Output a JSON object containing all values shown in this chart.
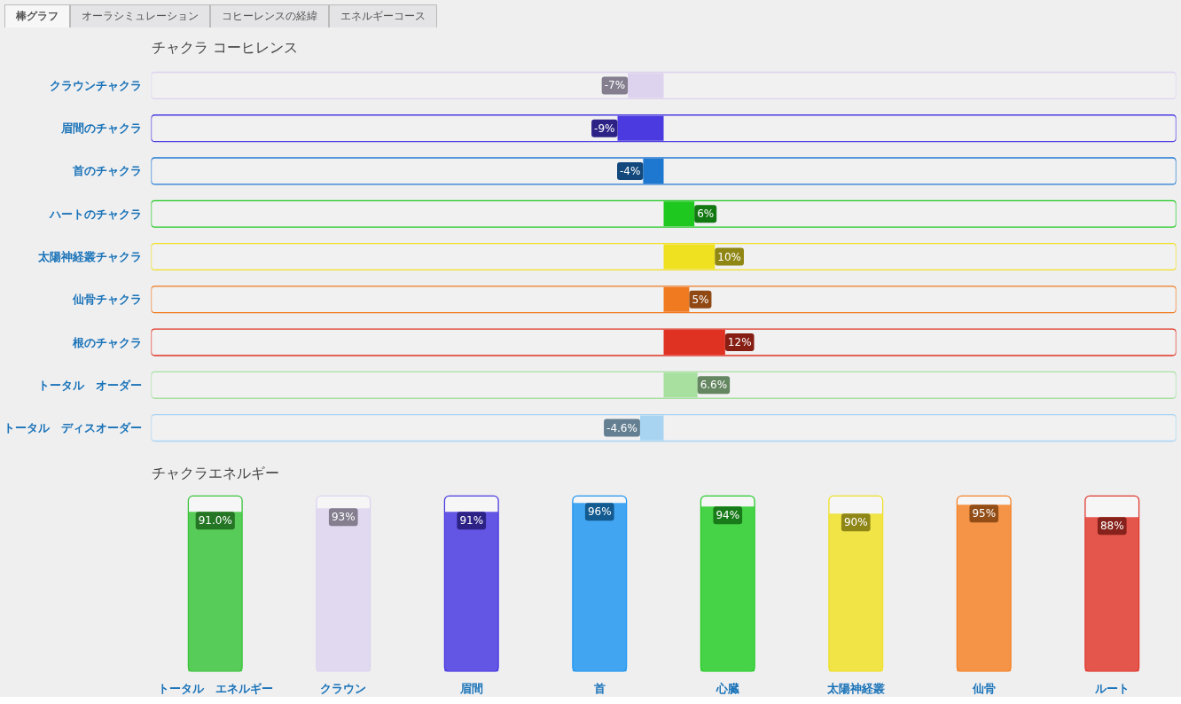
{
  "chart_data": [
    {
      "type": "bar",
      "orientation": "horizontal",
      "title": "チャクラ コーヒレンス",
      "annotations": [
        "棒グラフ",
        "オーラシミュレーション",
        "コヒーレンスの経緯",
        "エネルギーコース"
      ],
      "categories": [
        "クラウンチャクラ",
        "眉間のチャクラ",
        "首のチャクラ",
        "ハートのチャクラ",
        "太陽神経叢チャクラ",
        "仙骨チャクラ",
        "根のチャクラ",
        "トータル　オーダー",
        "トータル　ディスオーダー"
      ],
      "values": [
        -7,
        -9,
        -4,
        6,
        10,
        5,
        12,
        6.6,
        -4.6
      ],
      "value_labels": [
        "-7%",
        "-9%",
        "-4%",
        "6%",
        "10%",
        "5%",
        "12%",
        "6.6%",
        "-4.6%"
      ],
      "colors": [
        "#ddd3ee",
        "#4a3ae0",
        "#1f78d0",
        "#1ec81e",
        "#efe020",
        "#f07a20",
        "#e03222",
        "#a8e0a0",
        "#a8d4f2"
      ],
      "xlim": [
        -100,
        100
      ],
      "tick_labels": "y",
      "grid": false
    },
    {
      "type": "bar",
      "title": "チャクラエネルギー",
      "categories": [
        "トータル　エネルギー",
        "クラウン",
        "眉間",
        "首",
        "心臓",
        "太陽神経叢",
        "仙骨",
        "ルート"
      ],
      "values": [
        91.0,
        93,
        91,
        96,
        94,
        90,
        95,
        88
      ],
      "value_labels": [
        "91.0%",
        "93%",
        "91%",
        "96%",
        "94%",
        "90%",
        "95%",
        "88%"
      ],
      "colors": [
        "#3cc43c",
        "#ddd3ee",
        "#4a3ae0",
        "#2196f0",
        "#28cc28",
        "#efe028",
        "#f58228",
        "#e03a2e"
      ],
      "ylim": [
        0,
        100
      ],
      "tick_labels": "x",
      "grid": false
    }
  ]
}
